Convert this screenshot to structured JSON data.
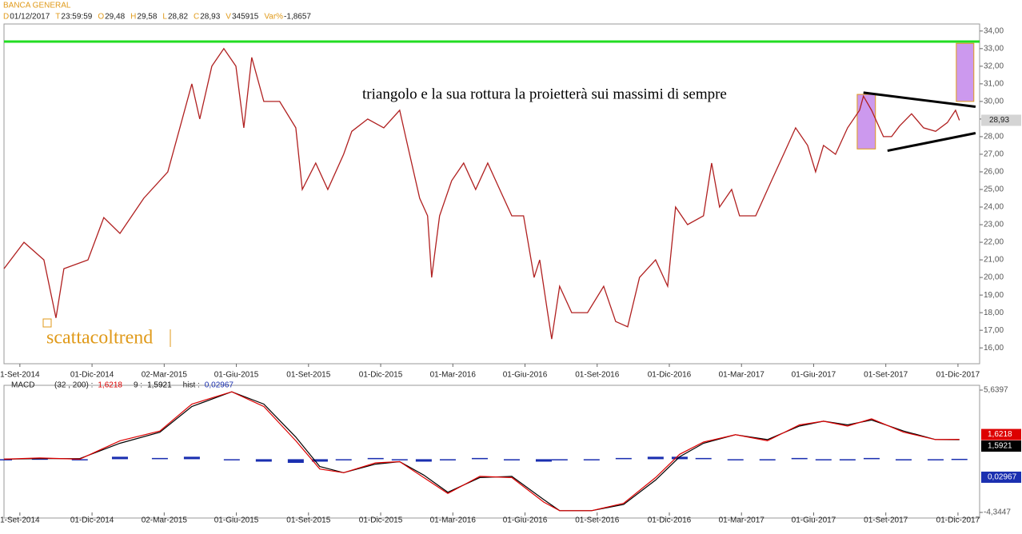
{
  "chart_data": [
    {
      "type": "line",
      "title": "BANCA GENERAL",
      "info": [
        {
          "key": "D",
          "value": "01/12/2017"
        },
        {
          "key": "T",
          "value": "23:59:59"
        },
        {
          "key": "O",
          "value": "29,48"
        },
        {
          "key": "H",
          "value": "29,58"
        },
        {
          "key": "L",
          "value": "28,82"
        },
        {
          "key": "C",
          "value": "28,93"
        },
        {
          "key": "V",
          "value": "345915"
        },
        {
          "key": "Var%",
          "value": "-1,8657"
        }
      ],
      "annotation": "triangolo e la sua rottura la proietterà sui massimi di sempre",
      "watermark": "scattacoltrend",
      "x": [
        -0.66,
        0.17,
        1.0,
        1.5,
        1.83,
        2.83,
        3.49,
        4.16,
        5.15,
        6.15,
        6.65,
        7.15,
        7.48,
        7.98,
        8.48,
        8.98,
        9.31,
        9.64,
        10.14,
        10.8,
        11.47,
        11.74,
        12.3,
        12.8,
        13.46,
        13.8,
        14.46,
        15.13,
        15.79,
        16.12,
        16.62,
        16.95,
        17.12,
        17.45,
        17.95,
        18.45,
        18.95,
        19.45,
        19.95,
        20.45,
        20.94,
        21.38,
        21.61,
        21.94,
        22.11,
        22.44,
        22.94,
        23.6,
        24.27,
        24.77,
        25.27,
        25.76,
        26.43,
        26.93,
        27.26,
        27.76,
        28.42,
        28.76,
        29.09,
        29.59,
        29.92,
        30.59,
        31.25,
        31.75,
        32.25,
        32.75,
        33.08,
        33.41,
        33.91,
        34.41,
        34.91,
        35.07,
        35.41,
        35.9,
        36.24,
        36.57,
        37.07,
        37.57,
        38.07,
        38.56,
        38.9,
        39.06
      ],
      "values": [
        20.5,
        22,
        21,
        17.7,
        20.5,
        21,
        23.4,
        22.5,
        24.5,
        26,
        28.5,
        31,
        29,
        32,
        33,
        32,
        28.5,
        32.5,
        30,
        30,
        28.5,
        25,
        26.5,
        25,
        27,
        28.3,
        29,
        28.5,
        29.5,
        27.5,
        24.5,
        23.5,
        20,
        23.5,
        25.5,
        26.5,
        25,
        26.5,
        25,
        23.5,
        23.5,
        20,
        21,
        18,
        16.5,
        19.5,
        18,
        18,
        19.5,
        17.5,
        17.2,
        20,
        21,
        19.5,
        24,
        23,
        23.5,
        26.5,
        24,
        25,
        23.5,
        23.5,
        25.5,
        27,
        28.5,
        27.5,
        26,
        27.5,
        27,
        28.5,
        29.5,
        30.3,
        29.5,
        28,
        28,
        28.6,
        29.3,
        28.5,
        28.3,
        28.8,
        29.5,
        28.93
      ],
      "last_label": "28,93",
      "color": "#b02020",
      "hline": 33.4,
      "hline_color": "#22dd22",
      "trendlines": [
        {
          "x": [
            35.07,
            39.73
          ],
          "y": [
            30.5,
            29.7
          ]
        },
        {
          "x": [
            36.07,
            39.73
          ],
          "y": [
            27.2,
            28.2
          ]
        }
      ],
      "boxes": [
        {
          "x": [
            34.81,
            35.57
          ],
          "y": [
            27.3,
            30.4
          ]
        },
        {
          "x": [
            38.93,
            39.66
          ],
          "y": [
            30,
            33.3
          ]
        }
      ],
      "box_color": "#cc99ee",
      "xlim": [
        -0.66,
        39.9
      ],
      "ylim": [
        15.1,
        34.4
      ],
      "xticks": [
        {
          "value": 0,
          "label": "1-Set-2014"
        },
        {
          "value": 3,
          "label": "01-Dic-2014"
        },
        {
          "value": 6,
          "label": "02-Mar-2015"
        },
        {
          "value": 9,
          "label": "01-Giu-2015"
        },
        {
          "value": 12,
          "label": "01-Set-2015"
        },
        {
          "value": 15,
          "label": "01-Dic-2015"
        },
        {
          "value": 18,
          "label": "01-Mar-2016"
        },
        {
          "value": 21,
          "label": "01-Giu-2016"
        },
        {
          "value": 24,
          "label": "01-Set-2016"
        },
        {
          "value": 27,
          "label": "01-Dic-2016"
        },
        {
          "value": 30,
          "label": "01-Mar-2017"
        },
        {
          "value": 33,
          "label": "01-Giu-2017"
        },
        {
          "value": 36,
          "label": "01-Set-2017"
        },
        {
          "value": 39,
          "label": "01-Dic-2017"
        }
      ],
      "yticks": [
        {
          "value": 16,
          "label": "16,00"
        },
        {
          "value": 17,
          "label": "17,00"
        },
        {
          "value": 18,
          "label": "18,00"
        },
        {
          "value": 19,
          "label": "19,00"
        },
        {
          "value": 20,
          "label": "20,00"
        },
        {
          "value": 21,
          "label": "21,00"
        },
        {
          "value": 22,
          "label": "22,00"
        },
        {
          "value": 23,
          "label": "23,00"
        },
        {
          "value": 24,
          "label": "24,00"
        },
        {
          "value": 25,
          "label": "25,00"
        },
        {
          "value": 26,
          "label": "26,00"
        },
        {
          "value": 27,
          "label": "27,00"
        },
        {
          "value": 28,
          "label": "28,00"
        },
        {
          "value": 29,
          "label": "29,00"
        },
        {
          "value": 30,
          "label": "30,00"
        },
        {
          "value": 31,
          "label": "31,00"
        },
        {
          "value": 32,
          "label": "32,00"
        },
        {
          "value": 33,
          "label": "33,00"
        },
        {
          "value": 34,
          "label": "34,00"
        }
      ]
    },
    {
      "type": "macd",
      "title": "MACD",
      "x": [
        -0.66,
        0.83,
        2.49,
        4.16,
        5.82,
        7.15,
        8.81,
        10.14,
        11.47,
        12.47,
        13.46,
        14.79,
        15.79,
        16.79,
        17.79,
        19.12,
        20.45,
        21.78,
        22.44,
        23.77,
        25.1,
        26.43,
        27.43,
        28.42,
        29.75,
        31.08,
        32.41,
        33.41,
        34.41,
        35.41,
        36.74,
        38.07,
        39.06
      ],
      "series": [
        {
          "name": "(32 , 200) :",
          "color": "#dd0000",
          "value_label": "1,6218",
          "values": [
            0,
            0.1,
            0,
            1.5,
            2.3,
            4.5,
            5.5,
            4.3,
            1.5,
            -0.8,
            -1.1,
            -0.3,
            -0.2,
            -1.5,
            -2.8,
            -1.4,
            -1.5,
            -3.5,
            -4.2,
            -4.2,
            -3.6,
            -1.5,
            0.4,
            1.4,
            2,
            1.5,
            2.8,
            3.1,
            2.7,
            3.3,
            2.2,
            1.6,
            1.6218
          ]
        },
        {
          "name": "9 :",
          "color": "#000000",
          "value_label": "1,5921",
          "values": [
            0,
            0.05,
            0.05,
            1.3,
            2.2,
            4.3,
            5.5,
            4.5,
            1.8,
            -0.6,
            -1.1,
            -0.4,
            -0.2,
            -1.3,
            -2.7,
            -1.5,
            -1.4,
            -3.3,
            -4.2,
            -4.2,
            -3.7,
            -1.7,
            0.2,
            1.3,
            2,
            1.6,
            2.7,
            3.1,
            2.8,
            3.2,
            2.3,
            1.6,
            1.5921
          ]
        },
        {
          "name": "hist :",
          "color": "#1a2fb0",
          "value_label": "0,02967",
          "values": [
            0,
            0.05,
            -0.05,
            0.2,
            0.1,
            0.2,
            0,
            -0.2,
            -0.3,
            -0.2,
            0,
            0.1,
            0,
            -0.2,
            -0.1,
            0.1,
            -0.1,
            -0.2,
            0,
            0,
            0.1,
            0.2,
            0.2,
            0.1,
            0,
            -0.1,
            0.1,
            0,
            -0.1,
            0.1,
            -0.1,
            0,
            0.02967
          ]
        }
      ],
      "xlim": [
        -0.66,
        39.9
      ],
      "ylim": [
        -4.3447,
        5.6397
      ],
      "yticks": [
        {
          "value": 5.6397,
          "label": "5,6397"
        },
        {
          "value": -4.3447,
          "label": "-4,3447"
        }
      ],
      "xticks": [
        {
          "value": 0,
          "label": "1-Set-2014"
        },
        {
          "value": 3,
          "label": "01-Dic-2014"
        },
        {
          "value": 6,
          "label": "02-Mar-2015"
        },
        {
          "value": 9,
          "label": "01-Giu-2015"
        },
        {
          "value": 12,
          "label": "01-Set-2015"
        },
        {
          "value": 15,
          "label": "01-Dic-2015"
        },
        {
          "value": 18,
          "label": "01-Mar-2016"
        },
        {
          "value": 21,
          "label": "01-Giu-2016"
        },
        {
          "value": 24,
          "label": "01-Set-2016"
        },
        {
          "value": 27,
          "label": "01-Dic-2016"
        },
        {
          "value": 30,
          "label": "01-Mar-2017"
        },
        {
          "value": 33,
          "label": "01-Giu-2017"
        },
        {
          "value": 36,
          "label": "01-Set-2017"
        },
        {
          "value": 39,
          "label": "01-Dic-2017"
        }
      ]
    }
  ]
}
